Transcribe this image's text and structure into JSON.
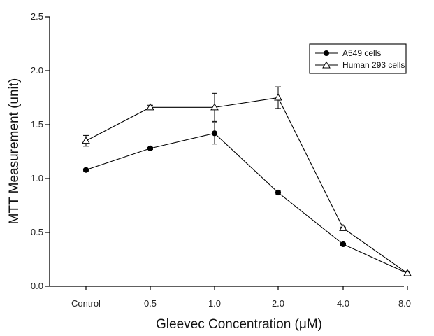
{
  "chart_data": {
    "type": "line",
    "title": "",
    "xlabel": "Gleevec Concentration (μM)",
    "ylabel": "MTT Measurement (unit)",
    "categories": [
      "Control",
      "0.5",
      "1.0",
      "2.0",
      "4.0",
      "8.0"
    ],
    "ylim": [
      0,
      2.5
    ],
    "yticks": [
      "0.0",
      "0.5",
      "1.0",
      "1.5",
      "2.0",
      "2.5"
    ],
    "grid": false,
    "legend_position": "top-right",
    "series": [
      {
        "name": "A549 cells",
        "marker": "filled-circle",
        "color": "#000000",
        "values": [
          1.08,
          1.28,
          1.42,
          0.87,
          0.39,
          0.12
        ],
        "errors": [
          0.01,
          0.01,
          0.1,
          0.02,
          0.01,
          0.01
        ]
      },
      {
        "name": "Human 293 cells",
        "marker": "open-triangle",
        "color": "#000000",
        "values": [
          1.35,
          1.66,
          1.66,
          1.75,
          0.54,
          0.12
        ],
        "errors": [
          0.05,
          0.02,
          0.13,
          0.1,
          0.01,
          0.01
        ]
      }
    ]
  }
}
